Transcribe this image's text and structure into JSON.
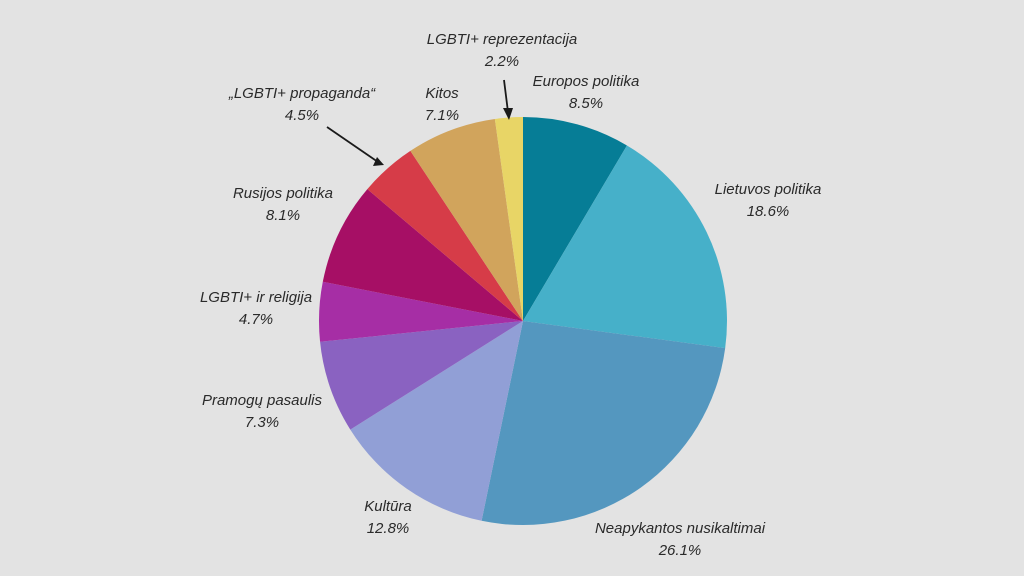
{
  "chart_data": {
    "type": "pie",
    "start": "top",
    "direction": "clockwise",
    "slices": [
      {
        "label": "Europos politika",
        "value": 8.5,
        "value_label": "8.5%",
        "color": "#067d96"
      },
      {
        "label": "Lietuvos politika",
        "value": 18.6,
        "value_label": "18.6%",
        "color": "#46b0c9"
      },
      {
        "label": "Neapykantos nusikaltimai",
        "value": 26.1,
        "value_label": "26.1%",
        "color": "#5497bf"
      },
      {
        "label": "Kultūra",
        "value": 12.8,
        "value_label": "12.8%",
        "color": "#919fd6"
      },
      {
        "label": "Pramogų pasaulis",
        "value": 7.3,
        "value_label": "7.3%",
        "color": "#8a62c1"
      },
      {
        "label": "LGBTI+ ir religija",
        "value": 4.7,
        "value_label": "4.7%",
        "color": "#a62ea5"
      },
      {
        "label": "Rusijos politika",
        "value": 8.1,
        "value_label": "8.1%",
        "color": "#a60f65"
      },
      {
        "label": "„LGBTI+  propaganda“",
        "value": 4.5,
        "value_label": "4.5%",
        "color": "#d63c48"
      },
      {
        "label": "Kitos",
        "value": 7.1,
        "value_label": "7.1%",
        "color": "#d1a45c"
      },
      {
        "label": "LGBTI+ reprezentacija",
        "value": 2.2,
        "value_label": "2.2%",
        "color": "#e8d566"
      }
    ]
  }
}
